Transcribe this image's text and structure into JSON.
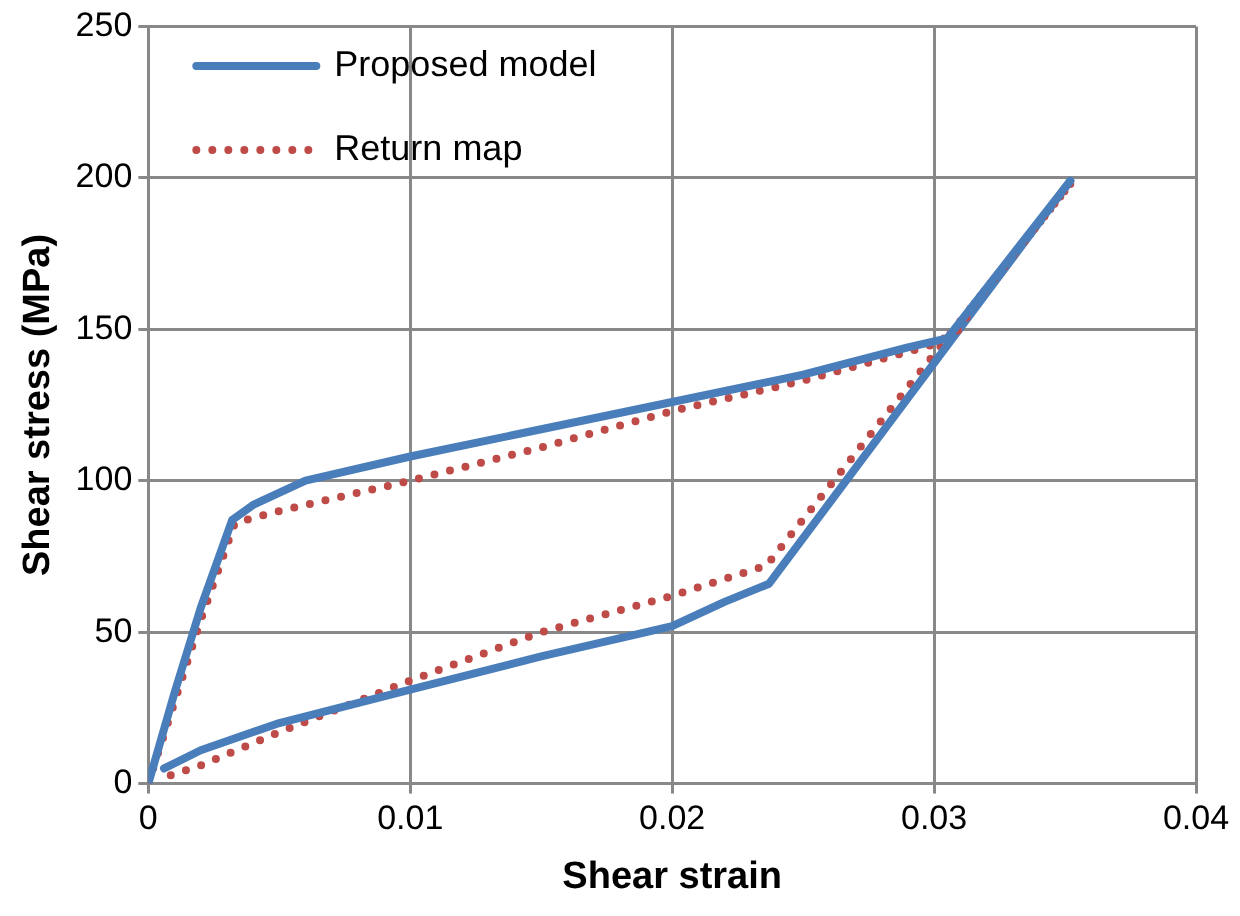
{
  "chart_data": {
    "type": "line",
    "xlabel": "Shear strain",
    "ylabel": "Shear stress (MPa)",
    "xlim": [
      0,
      0.04
    ],
    "xticks": [
      0,
      0.01,
      0.02,
      0.03,
      0.04
    ],
    "ylim": [
      0,
      250
    ],
    "yticks": [
      0,
      50,
      100,
      150,
      200,
      250
    ],
    "grid": true,
    "legend": "top left",
    "marker": "none",
    "series": [
      {
        "name": "Proposed model",
        "color": "#4a7ebb",
        "line_style": "solid",
        "x": [
          0,
          0.001,
          0.002,
          0.0032,
          0.004,
          0.006,
          0.01,
          0.015,
          0.02,
          0.025,
          0.029,
          0.0305,
          0.0352
        ],
        "values": [
          0,
          30,
          58,
          87,
          92,
          100,
          108,
          117,
          126,
          135,
          144,
          147,
          199
        ]
      },
      {
        "name": "Return map",
        "color": "#be4b48",
        "line_style": "dotted",
        "x": [
          0,
          0.001,
          0.002,
          0.0033,
          0.005,
          0.01,
          0.015,
          0.02,
          0.025,
          0.03,
          0.031,
          0.0315,
          0.0352
        ],
        "values": [
          0,
          27,
          54,
          86,
          90,
          100,
          111,
          123,
          133,
          145,
          150,
          158,
          198
        ]
      },
      {
        "color": "#4a7ebb",
        "line_style": "solid",
        "x": [
          0.0352,
          0.0237,
          0.022,
          0.02,
          0.015,
          0.01,
          0.005,
          0.002,
          0.0006
        ],
        "values": [
          199,
          66,
          60,
          52,
          42,
          31,
          20,
          11,
          5
        ]
      },
      {
        "color": "#be4b48",
        "line_style": "dotted",
        "x": [
          0.0352,
          0.0303,
          0.0236,
          0.02,
          0.015,
          0.01,
          0.005,
          0.002,
          0.0006
        ],
        "values": [
          198,
          145,
          72,
          62,
          50,
          34,
          17,
          6,
          2
        ]
      }
    ]
  }
}
